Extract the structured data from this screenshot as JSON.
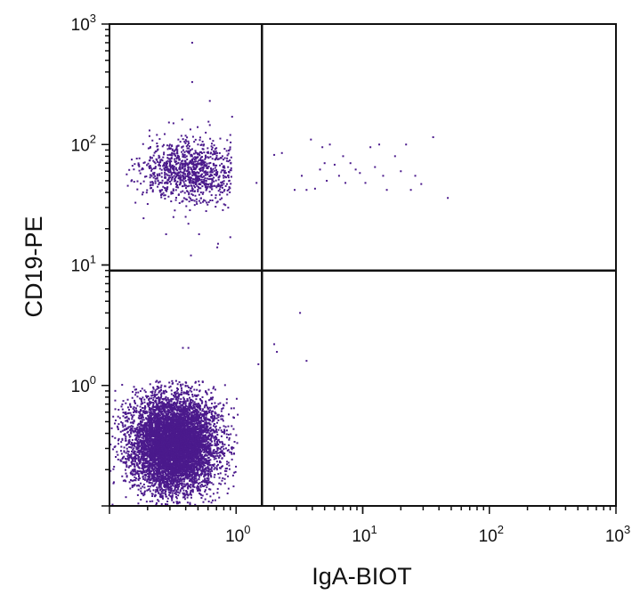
{
  "chart_data": {
    "type": "scatter",
    "title": "",
    "xlabel": "IgA-BIOT",
    "ylabel": "CD19-PE",
    "x_scale": "log",
    "y_scale": "log",
    "xlim": [
      0.1,
      1000
    ],
    "ylim": [
      0.1,
      1000
    ],
    "x_ticks": [
      {
        "base": "10",
        "exp": "0",
        "value": 1
      },
      {
        "base": "10",
        "exp": "1",
        "value": 10
      },
      {
        "base": "10",
        "exp": "2",
        "value": 100
      },
      {
        "base": "10",
        "exp": "3",
        "value": 1000
      }
    ],
    "y_ticks": [
      {
        "base": "10",
        "exp": "0",
        "value": 1
      },
      {
        "base": "10",
        "exp": "1",
        "value": 10
      },
      {
        "base": "10",
        "exp": "2",
        "value": 100
      },
      {
        "base": "10",
        "exp": "3",
        "value": 1000
      }
    ],
    "gates": {
      "x": 1.6,
      "y": 9.0
    },
    "grid": false,
    "legend": "none",
    "point_color": "#4b1a8c",
    "series": [
      {
        "points": [
          [
            0.45,
            700
          ],
          [
            0.45,
            330
          ],
          [
            0.62,
            230
          ],
          [
            0.32,
            150
          ],
          [
            0.93,
            170
          ],
          [
            0.15,
            75
          ],
          [
            0.35,
            110
          ],
          [
            0.62,
            145
          ],
          [
            0.42,
            55
          ],
          [
            0.55,
            40
          ],
          [
            0.58,
            28
          ],
          [
            0.32,
            25
          ],
          [
            0.42,
            22
          ],
          [
            0.51,
            18
          ],
          [
            0.72,
            15
          ],
          [
            0.71,
            14
          ],
          [
            0.44,
            12
          ],
          [
            0.28,
            18
          ],
          [
            0.9,
            17
          ],
          [
            0.24,
            90
          ],
          [
            0.18,
            62
          ],
          [
            0.22,
            48
          ],
          [
            0.78,
            80
          ],
          [
            0.5,
            100
          ],
          [
            0.86,
            55
          ],
          [
            0.64,
            38
          ],
          [
            0.38,
            34
          ],
          [
            0.3,
            62
          ],
          [
            0.26,
            42
          ],
          [
            0.47,
            84
          ],
          [
            0.75,
            112
          ],
          [
            0.9,
            120
          ],
          [
            2.0,
            82
          ],
          [
            2.3,
            85
          ],
          [
            2.9,
            42
          ],
          [
            3.3,
            55
          ],
          [
            3.6,
            42
          ],
          [
            3.9,
            110
          ],
          [
            4.2,
            43
          ],
          [
            4.6,
            62
          ],
          [
            4.8,
            95
          ],
          [
            5.0,
            70
          ],
          [
            5.2,
            50
          ],
          [
            5.5,
            100
          ],
          [
            6.0,
            68
          ],
          [
            6.5,
            55
          ],
          [
            7.0,
            80
          ],
          [
            7.3,
            48
          ],
          [
            8.0,
            70
          ],
          [
            8.8,
            62
          ],
          [
            9.5,
            58
          ],
          [
            10.5,
            48
          ],
          [
            11.5,
            95
          ],
          [
            12.5,
            65
          ],
          [
            13.5,
            100
          ],
          [
            14.5,
            55
          ],
          [
            15.5,
            42
          ],
          [
            18,
            80
          ],
          [
            20,
            60
          ],
          [
            22,
            100
          ],
          [
            24,
            42
          ],
          [
            26,
            55
          ],
          [
            29,
            47
          ],
          [
            36,
            115
          ],
          [
            47,
            36
          ],
          [
            1.45,
            48
          ],
          [
            3.2,
            4.0
          ],
          [
            2.0,
            2.2
          ],
          [
            2.1,
            1.9
          ],
          [
            3.6,
            1.6
          ],
          [
            1.5,
            1.5
          ],
          [
            0.38,
            2.05
          ],
          [
            0.42,
            2.05
          ]
        ]
      }
    ],
    "density_clusters": [
      {
        "n": 1000,
        "cx": 0.44,
        "cy": 60,
        "sx": 0.19,
        "sy": 0.13,
        "bounds": {
          "x": [
            0.13,
            0.92
          ],
          "y": [
            12,
            230
          ]
        }
      },
      {
        "n": 7000,
        "cx": 0.32,
        "cy": 0.33,
        "sx": 0.17,
        "sy": 0.2,
        "bounds": {
          "x": [
            0.1,
            1.05
          ],
          "y": [
            0.1,
            1.1
          ]
        }
      }
    ]
  }
}
